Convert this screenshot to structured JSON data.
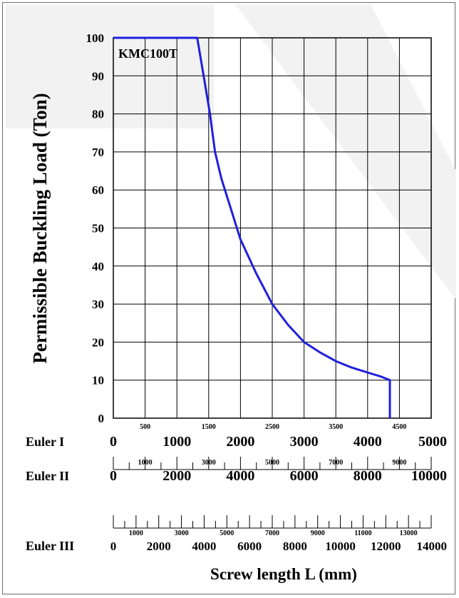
{
  "chart_data": {
    "type": "line",
    "model_label": "KMC100T",
    "ylabel": "Permissible Buckling Load (Ton)",
    "xlabel": "Screw length L (mm)",
    "ylim": [
      0,
      100
    ],
    "yticks": [
      0,
      10,
      20,
      30,
      40,
      50,
      60,
      70,
      80,
      90,
      100
    ],
    "xlim": [
      0,
      5000
    ],
    "x_major_ticks": [
      0,
      1000,
      2000,
      3000,
      4000,
      5000
    ],
    "x_minor_ticks": [
      500,
      1500,
      2500,
      3500,
      4500
    ],
    "grid": true,
    "line_color": "#1f1fdd",
    "series": [
      {
        "name": "KMC100T",
        "points": [
          {
            "x": 0,
            "y": 100
          },
          {
            "x": 1320,
            "y": 100
          },
          {
            "x": 1420,
            "y": 90
          },
          {
            "x": 1520,
            "y": 80
          },
          {
            "x": 1600,
            "y": 70
          },
          {
            "x": 1700,
            "y": 63
          },
          {
            "x": 1850,
            "y": 55
          },
          {
            "x": 2000,
            "y": 47
          },
          {
            "x": 2250,
            "y": 38
          },
          {
            "x": 2500,
            "y": 30
          },
          {
            "x": 2750,
            "y": 24.5
          },
          {
            "x": 3000,
            "y": 20
          },
          {
            "x": 3250,
            "y": 17.3
          },
          {
            "x": 3500,
            "y": 15
          },
          {
            "x": 3750,
            "y": 13.3
          },
          {
            "x": 4000,
            "y": 12
          },
          {
            "x": 4200,
            "y": 11
          },
          {
            "x": 4350,
            "y": 10
          },
          {
            "x": 4350,
            "y": 0
          }
        ]
      }
    ],
    "scales": [
      {
        "name": "Euler I",
        "max": 5000,
        "major": [
          0,
          1000,
          2000,
          3000,
          4000,
          5000
        ],
        "minor": [
          500,
          1500,
          2500,
          3500,
          4500
        ]
      },
      {
        "name": "Euler II",
        "max": 10000,
        "major": [
          0,
          2000,
          4000,
          6000,
          8000,
          10000
        ],
        "minor": [
          1000,
          3000,
          5000,
          7000,
          9000
        ]
      },
      {
        "name": "Euler III",
        "max": 14000,
        "major": [
          0,
          2000,
          4000,
          6000,
          8000,
          10000,
          12000,
          14000
        ],
        "minor": [
          1000,
          3000,
          5000,
          7000,
          9000,
          11000,
          13000
        ]
      }
    ]
  }
}
